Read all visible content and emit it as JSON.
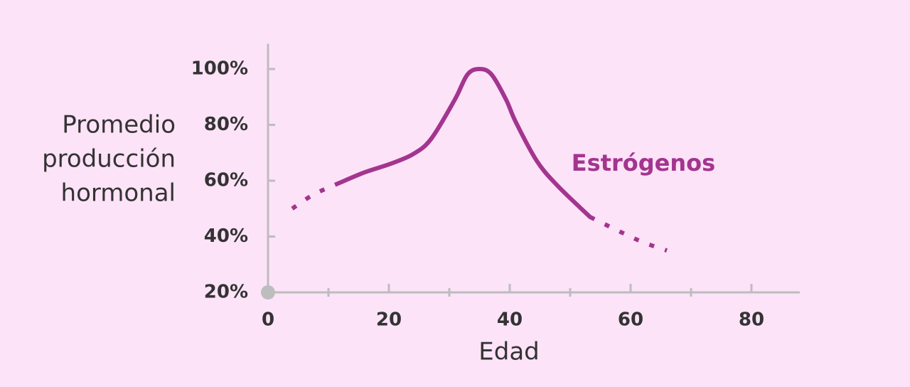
{
  "chart_data": {
    "type": "line",
    "x_label": "Edad",
    "y_label": [
      "Promedio",
      "producción",
      "hormonal"
    ],
    "annotation": "Estrógenos",
    "xlim": [
      0,
      88
    ],
    "xticks": [
      0,
      20,
      40,
      60,
      80
    ],
    "xminorticks": [
      10,
      30,
      50,
      70
    ],
    "ylim": [
      20,
      109
    ],
    "yticks": [
      {
        "value": 20,
        "label": "20%"
      },
      {
        "value": 40,
        "label": "40%"
      },
      {
        "value": 60,
        "label": "60%"
      },
      {
        "value": 80,
        "label": "80%"
      },
      {
        "value": 100,
        "label": "100%"
      }
    ],
    "series": [
      {
        "color": "#a3358f",
        "style": "dotted",
        "x": [
          4,
          7.5,
          11.8
        ],
        "values": [
          50,
          55,
          59.2
        ]
      },
      {
        "name": "Estrógenos",
        "color": "#a3358f",
        "style": "solid",
        "x": [
          11.8,
          16,
          20.2,
          24,
          27,
          30.9,
          33,
          35,
          37,
          39.4,
          41,
          44.5,
          48,
          53.3
        ],
        "values": [
          59.2,
          63,
          66,
          69.5,
          75,
          89,
          98,
          100,
          98,
          89,
          81,
          67,
          58,
          47
        ]
      },
      {
        "color": "#a3358f",
        "style": "dotted",
        "x": [
          53.3,
          58,
          62,
          66
        ],
        "values": [
          47,
          42,
          38,
          35
        ]
      }
    ]
  }
}
